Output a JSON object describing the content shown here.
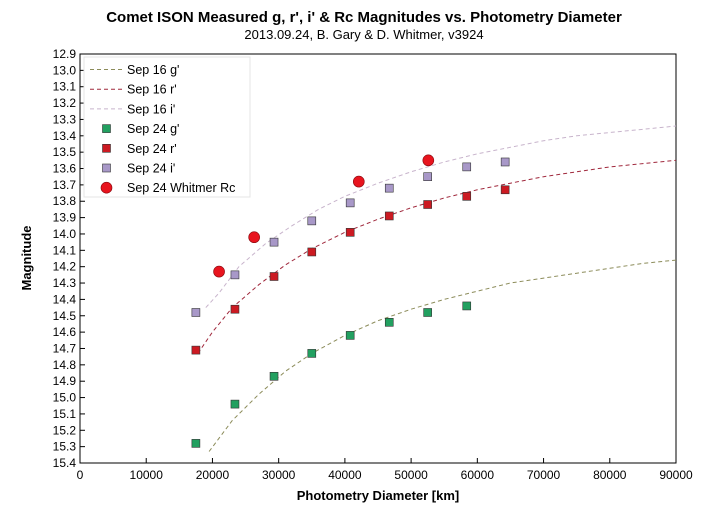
{
  "chart_data": {
    "type": "scatter",
    "title": "Comet ISON Measured g, r', i' & Rc Magnitudes vs. Photometry Diameter",
    "subtitle": "2013.09.24,  B. Gary & D. Whitmer, v3924",
    "xlabel": "Photometry Diameter  [km]",
    "ylabel": "Magnitude",
    "xlim": [
      0,
      90000
    ],
    "ylim": [
      12.9,
      15.4
    ],
    "y_inverted": true,
    "x_ticks": [
      0,
      10000,
      20000,
      30000,
      40000,
      50000,
      60000,
      70000,
      80000,
      90000
    ],
    "x_tick_labels": [
      "0",
      "10000",
      "20000",
      "30000",
      "40000",
      "50000",
      "60000",
      "70000",
      "80000",
      "90000"
    ],
    "y_ticks": [
      12.9,
      13.0,
      13.1,
      13.2,
      13.3,
      13.4,
      13.5,
      13.6,
      13.7,
      13.8,
      13.9,
      14.0,
      14.1,
      14.2,
      14.3,
      14.4,
      14.5,
      14.6,
      14.7,
      14.8,
      14.9,
      15.0,
      15.1,
      15.2,
      15.3,
      15.4
    ],
    "y_tick_labels": [
      "12.9",
      "13.0",
      "13.1",
      "13.2",
      "13.3",
      "13.4",
      "13.5",
      "13.6",
      "13.7",
      "13.8",
      "13.9",
      "14.0",
      "14.1",
      "14.2",
      "14.3",
      "14.4",
      "14.5",
      "14.6",
      "14.7",
      "14.8",
      "14.9",
      "15.0",
      "15.1",
      "15.2",
      "15.3",
      "15.4"
    ],
    "grid": false,
    "legend_position": "top-left",
    "series": [
      {
        "name": "Sep 16 g'",
        "kind": "dashed-line",
        "color": "#8c8c5a",
        "x": [
          19500,
          23000,
          27000,
          31000,
          35000,
          40000,
          45000,
          50000,
          55000,
          60000,
          65000,
          70000,
          75000,
          80000,
          85000,
          90000
        ],
        "y": [
          15.33,
          15.14,
          14.98,
          14.84,
          14.73,
          14.62,
          14.53,
          14.46,
          14.4,
          14.35,
          14.3,
          14.27,
          14.24,
          14.21,
          14.18,
          14.16
        ]
      },
      {
        "name": "Sep 16 r'",
        "kind": "dashed-line",
        "color": "#a0283c",
        "x": [
          17800,
          20000,
          23000,
          27000,
          31000,
          35000,
          40000,
          45000,
          50000,
          55000,
          60000,
          65000,
          70000,
          75000,
          80000,
          85000,
          90000
        ],
        "y": [
          14.73,
          14.6,
          14.45,
          14.31,
          14.19,
          14.09,
          13.99,
          13.91,
          13.84,
          13.78,
          13.73,
          13.69,
          13.65,
          13.62,
          13.59,
          13.57,
          13.55
        ]
      },
      {
        "name": "Sep 16 i'",
        "kind": "dashed-line",
        "color": "#c8b4cc",
        "x": [
          19000,
          21000,
          24000,
          28000,
          32000,
          36000,
          40000,
          45000,
          50000,
          55000,
          60000,
          65000,
          70000,
          75000,
          80000,
          85000,
          90000
        ],
        "y": [
          14.45,
          14.36,
          14.2,
          14.06,
          13.95,
          13.85,
          13.77,
          13.69,
          13.62,
          13.56,
          13.51,
          13.47,
          13.43,
          13.4,
          13.38,
          13.36,
          13.34
        ]
      },
      {
        "name": "Sep 24 g'",
        "kind": "marker-square",
        "color": "#22a060",
        "x": [
          17500,
          23400,
          29300,
          35000,
          40800,
          46700,
          52500,
          58400
        ],
        "y": [
          15.28,
          15.04,
          14.87,
          14.73,
          14.62,
          14.54,
          14.48,
          14.44
        ]
      },
      {
        "name": "Sep 24 r'",
        "kind": "marker-square",
        "color": "#cc1a22",
        "x": [
          17500,
          23400,
          29300,
          35000,
          40800,
          46700,
          52500,
          58400,
          64200
        ],
        "y": [
          14.71,
          14.46,
          14.26,
          14.11,
          13.99,
          13.89,
          13.82,
          13.77,
          13.73
        ]
      },
      {
        "name": "Sep 24 i'",
        "kind": "marker-square",
        "color": "#a898c8",
        "x": [
          17500,
          23400,
          29300,
          35000,
          40800,
          46700,
          52500,
          58400,
          64200
        ],
        "y": [
          14.48,
          14.25,
          14.05,
          13.92,
          13.81,
          13.72,
          13.65,
          13.59,
          13.56
        ]
      },
      {
        "name": "Sep 24 Whitmer Rc",
        "kind": "marker-circle",
        "color": "#e8141e",
        "x": [
          21000,
          26300,
          42100,
          52600
        ],
        "y": [
          14.23,
          14.02,
          13.68,
          13.55
        ]
      }
    ]
  }
}
